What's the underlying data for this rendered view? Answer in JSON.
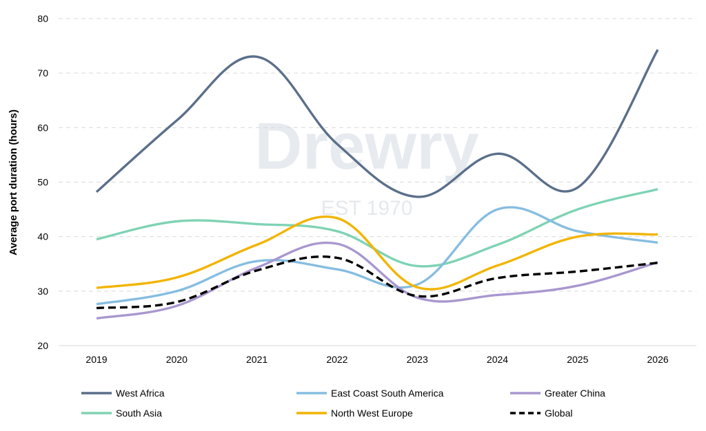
{
  "chart_data": {
    "type": "line",
    "title": "",
    "xlabel": "",
    "ylabel": "Average port duration (hours)",
    "categories": [
      "2019",
      "2020",
      "2021",
      "2022",
      "2023",
      "2024",
      "2025",
      "2026"
    ],
    "ylim": [
      20,
      80
    ],
    "yticks": [
      "20",
      "30",
      "40",
      "50",
      "60",
      "70",
      "80"
    ],
    "grid": "horizontal dashed",
    "legend_position": "bottom",
    "watermark": {
      "name": "Drewry",
      "tagline": "EST 1970"
    },
    "series": [
      {
        "name": "West Africa",
        "color": "#5b6f8a",
        "dash": "solid",
        "values": [
          48.2,
          61.3,
          73.0,
          57.0,
          47.3,
          55.2,
          49.0,
          74.3
        ]
      },
      {
        "name": "East Coast South America",
        "color": "#86bde0",
        "dash": "solid",
        "values": [
          27.6,
          30.0,
          35.5,
          34.0,
          31.2,
          45.0,
          41.0,
          38.9
        ]
      },
      {
        "name": "Greater China",
        "color": "#a897cf",
        "dash": "solid",
        "values": [
          25.0,
          27.3,
          34.3,
          38.7,
          28.8,
          29.3,
          31.0,
          35.3
        ]
      },
      {
        "name": "South Asia",
        "color": "#7ed3b4",
        "dash": "solid",
        "values": [
          39.5,
          42.8,
          42.3,
          41.0,
          34.6,
          38.5,
          45.0,
          48.7
        ]
      },
      {
        "name": "North West Europe",
        "color": "#f2b400",
        "dash": "solid",
        "values": [
          30.6,
          32.5,
          38.5,
          43.4,
          30.7,
          34.7,
          40.0,
          40.4
        ]
      },
      {
        "name": "Global",
        "color": "#000000",
        "dash": "dashed",
        "values": [
          26.9,
          28.0,
          33.8,
          36.1,
          29.1,
          32.4,
          33.6,
          35.2
        ]
      }
    ]
  }
}
